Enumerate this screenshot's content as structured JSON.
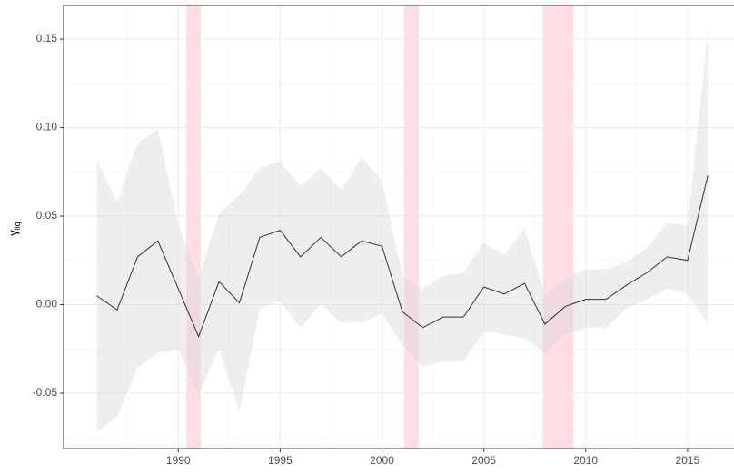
{
  "chart_data": {
    "type": "line",
    "ylabel": "γ",
    "ylabel_subscript": "liq",
    "x": [
      1986,
      1987,
      1988,
      1989,
      1990,
      1991,
      1992,
      1993,
      1994,
      1995,
      1996,
      1997,
      1998,
      1999,
      2000,
      2001,
      2002,
      2003,
      2004,
      2005,
      2006,
      2007,
      2008,
      2009,
      2010,
      2011,
      2012,
      2013,
      2014,
      2015,
      2016
    ],
    "values": [
      0.005,
      -0.003,
      0.027,
      0.036,
      0.009,
      -0.018,
      0.013,
      0.001,
      0.038,
      0.042,
      0.027,
      0.038,
      0.027,
      0.036,
      0.033,
      -0.004,
      -0.013,
      -0.007,
      -0.007,
      0.01,
      0.006,
      0.012,
      -0.011,
      -0.001,
      0.003,
      0.003,
      0.011,
      0.018,
      0.027,
      0.025,
      0.073
    ],
    "upper": [
      0.082,
      0.058,
      0.091,
      0.099,
      0.045,
      0.015,
      0.051,
      0.062,
      0.077,
      0.081,
      0.067,
      0.077,
      0.065,
      0.083,
      0.07,
      0.016,
      0.009,
      0.016,
      0.018,
      0.035,
      0.028,
      0.043,
      0.005,
      0.015,
      0.02,
      0.02,
      0.024,
      0.032,
      0.046,
      0.045,
      0.155
    ],
    "lower": [
      -0.072,
      -0.063,
      -0.036,
      -0.027,
      -0.025,
      -0.051,
      -0.025,
      -0.06,
      -0.002,
      0.002,
      -0.013,
      0.0,
      -0.01,
      -0.01,
      -0.005,
      -0.023,
      -0.035,
      -0.032,
      -0.032,
      -0.015,
      -0.017,
      -0.019,
      -0.027,
      -0.017,
      -0.013,
      -0.013,
      -0.002,
      0.003,
      0.009,
      0.006,
      -0.011
    ],
    "color": "#333333",
    "band_color": "#d9d9d9",
    "shaded_periods": [
      [
        1990.4,
        1991.1
      ],
      [
        2001.1,
        2001.8
      ],
      [
        2007.9,
        2009.4
      ]
    ],
    "shade_color": "#ffdde3",
    "xlim": [
      1984.37,
      2017.28
    ],
    "xticks": [
      1990,
      1995,
      2000,
      2005,
      2010,
      2015
    ],
    "ylim": [
      -0.0813,
      0.169
    ],
    "yticks": [
      -0.05,
      {
        "value": 0,
        "label": "0.00"
      },
      0.05,
      {
        "value": 0.1,
        "label": "0.10"
      },
      0.15
    ],
    "grid": true
  }
}
